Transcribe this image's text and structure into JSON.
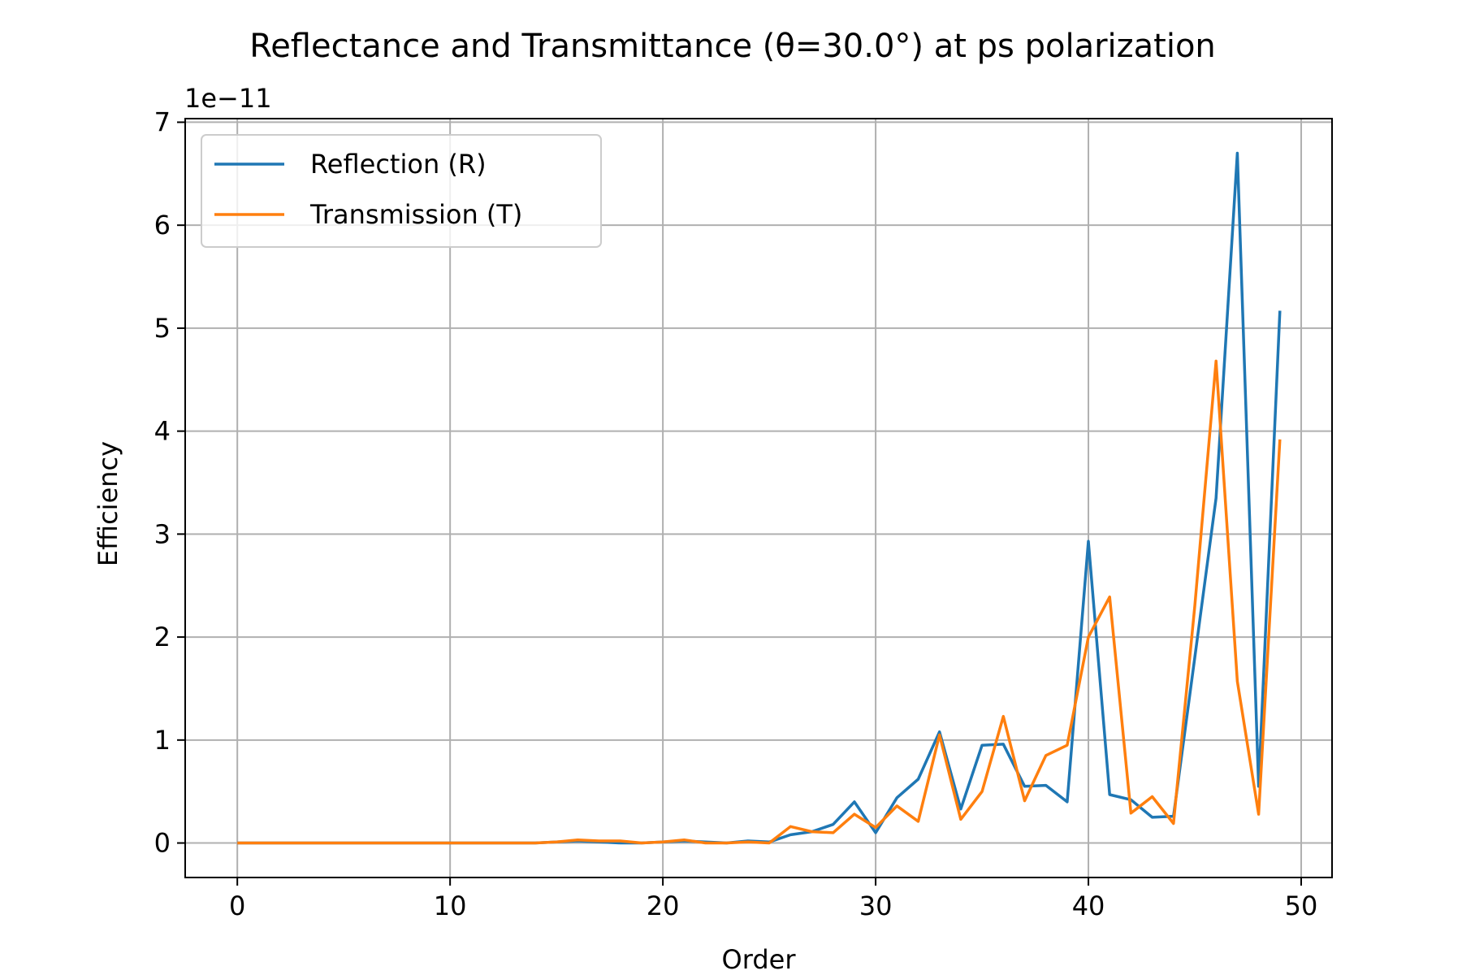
{
  "chart_data": {
    "type": "line",
    "title": "Reflectance and Transmittance (θ=30.0°) at ps polarization",
    "xlabel": "Order",
    "ylabel": "Efficiency",
    "y_scale_exponent_label": "1e−11",
    "xlim": [
      -2.45,
      51.45
    ],
    "ylim": [
      -0.335,
      7.035
    ],
    "x_ticks": [
      0,
      10,
      20,
      30,
      40,
      50
    ],
    "x_tick_labels": [
      "0",
      "10",
      "20",
      "30",
      "40",
      "50"
    ],
    "y_ticks": [
      0,
      1,
      2,
      3,
      4,
      5,
      6,
      7
    ],
    "y_tick_labels": [
      "0",
      "1",
      "2",
      "3",
      "4",
      "5",
      "6",
      "7"
    ],
    "grid": true,
    "legend_position": "upper-left",
    "x": [
      0,
      1,
      2,
      3,
      4,
      5,
      6,
      7,
      8,
      9,
      10,
      11,
      12,
      13,
      14,
      15,
      16,
      17,
      18,
      19,
      20,
      21,
      22,
      23,
      24,
      25,
      26,
      27,
      28,
      29,
      30,
      31,
      32,
      33,
      34,
      35,
      36,
      37,
      38,
      39,
      40,
      41,
      42,
      43,
      44,
      45,
      46,
      47,
      48,
      49
    ],
    "series": [
      {
        "name": "Reflection (R)",
        "color": "#1f77b4",
        "values": [
          0,
          0,
          0,
          0,
          0,
          0,
          0,
          0,
          0,
          0,
          0,
          0,
          0,
          0,
          0,
          0.01,
          0.02,
          0.01,
          0,
          0,
          0.01,
          0.02,
          0.01,
          0,
          0.02,
          0.01,
          0.08,
          0.11,
          0.18,
          0.4,
          0.1,
          0.44,
          0.62,
          1.08,
          0.33,
          0.95,
          0.96,
          0.55,
          0.56,
          0.4,
          2.93,
          0.47,
          0.42,
          0.25,
          0.26,
          1.8,
          3.35,
          6.7,
          0.55,
          5.17
        ]
      },
      {
        "name": "Transmission (T)",
        "color": "#ff7f0e",
        "values": [
          0,
          0,
          0,
          0,
          0,
          0,
          0,
          0,
          0,
          0,
          0,
          0,
          0,
          0,
          0,
          0.01,
          0.03,
          0.02,
          0.02,
          0,
          0.01,
          0.03,
          0,
          0,
          0.01,
          0,
          0.16,
          0.11,
          0.1,
          0.28,
          0.15,
          0.36,
          0.21,
          1.05,
          0.23,
          0.5,
          1.23,
          0.41,
          0.85,
          0.95,
          2.0,
          2.39,
          0.29,
          0.45,
          0.19,
          2.3,
          4.68,
          1.57,
          0.28,
          3.92
        ]
      }
    ]
  }
}
